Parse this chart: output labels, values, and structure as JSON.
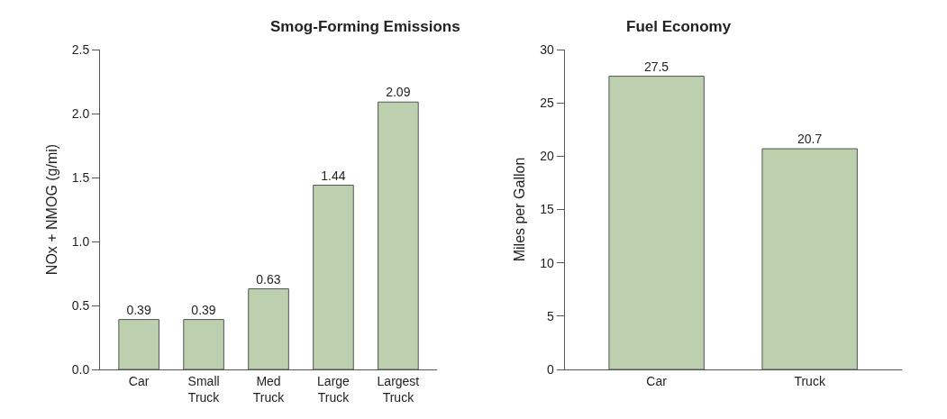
{
  "chart_data": [
    {
      "type": "bar",
      "title": "Smog-Forming Emissions",
      "ylabel": "NOx + NMOG (g/mi)",
      "categories": [
        "Car",
        "Small Truck",
        "Med Truck",
        "Large Truck",
        "Largest Truck"
      ],
      "values": [
        0.39,
        0.39,
        0.63,
        1.44,
        2.09
      ],
      "color": "#bcd0b0",
      "ylim": [
        0,
        2.5
      ],
      "yticks": [
        {
          "value": 0,
          "label": "0.0"
        },
        {
          "value": 0.5,
          "label": "0.5"
        },
        {
          "value": 1,
          "label": "1.0"
        },
        {
          "value": 1.5,
          "label": "1.5"
        },
        {
          "value": 2,
          "label": "2.0"
        },
        {
          "value": 2.5,
          "label": "2.5"
        }
      ],
      "data_labels": true
    },
    {
      "type": "bar",
      "title": "Fuel Economy",
      "ylabel": "Miles per Gallon",
      "categories": [
        "Car",
        "Truck"
      ],
      "values": [
        27.5,
        20.7
      ],
      "color": "#bcd0b0",
      "ylim": [
        0,
        30
      ],
      "yticks": [
        0,
        5,
        10,
        15,
        20,
        25,
        30
      ],
      "data_labels": true
    }
  ]
}
